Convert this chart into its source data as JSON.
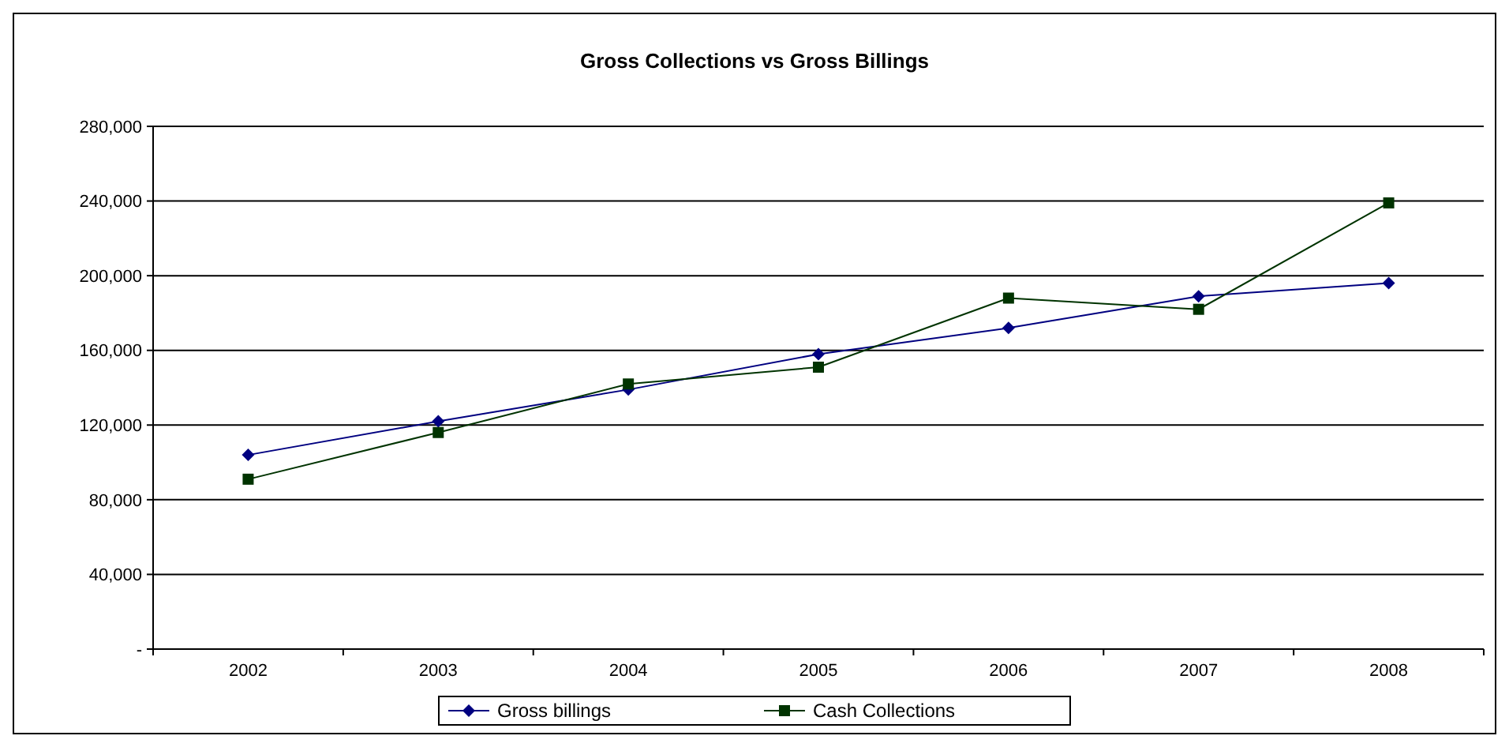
{
  "chart_data": {
    "type": "line",
    "title": "Gross Collections vs Gross Billings",
    "categories": [
      "2002",
      "2003",
      "2004",
      "2005",
      "2006",
      "2007",
      "2008"
    ],
    "series": [
      {
        "name": "Gross billings",
        "color": "#000080",
        "marker": "diamond",
        "values": [
          104000,
          122000,
          139000,
          158000,
          172000,
          189000,
          196000
        ]
      },
      {
        "name": "Cash Collections",
        "color": "#003300",
        "marker": "square",
        "values": [
          91000,
          116000,
          142000,
          151000,
          188000,
          182000,
          239000
        ]
      }
    ],
    "ylim": [
      0,
      280000
    ],
    "yticks": [
      {
        "value": 0,
        "label": "-"
      },
      {
        "value": 40000,
        "label": "40,000"
      },
      {
        "value": 80000,
        "label": "80,000"
      },
      {
        "value": 120000,
        "label": "120,000"
      },
      {
        "value": 160000,
        "label": "160,000"
      },
      {
        "value": 200000,
        "label": "200,000"
      },
      {
        "value": 240000,
        "label": "240,000"
      },
      {
        "value": 280000,
        "label": "280,000"
      }
    ],
    "grid": "y",
    "legend": "bottom",
    "line_style": "solid"
  }
}
